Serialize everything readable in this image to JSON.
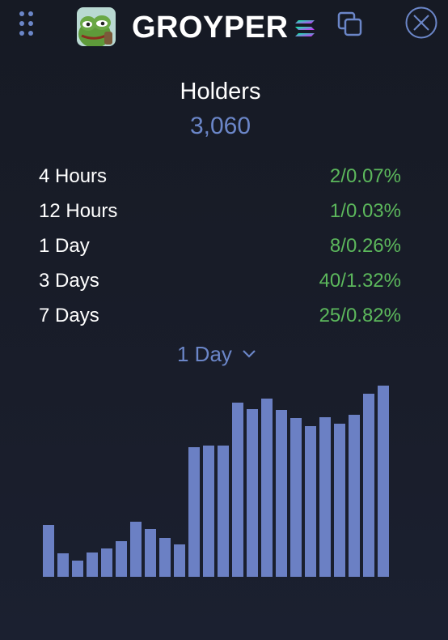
{
  "header": {
    "token_name": "GROYPER",
    "icons": {
      "drag": "drag-handle-icon",
      "avatar": "frog-avatar",
      "chain": "solana-icon",
      "copy": "copy-icon",
      "close": "close-icon"
    }
  },
  "holders": {
    "title": "Holders",
    "count": "3,060"
  },
  "stats": [
    {
      "label": "4 Hours",
      "value": "2/0.07%"
    },
    {
      "label": "12 Hours",
      "value": "1/0.03%"
    },
    {
      "label": "1 Day",
      "value": "8/0.26%"
    },
    {
      "label": "3 Days",
      "value": "40/1.32%"
    },
    {
      "label": "7 Days",
      "value": "25/0.82%"
    }
  ],
  "period_select": {
    "selected": "1 Day"
  },
  "colors": {
    "accent": "#6b86c8",
    "positive": "#5cb85c",
    "bar": "#6b80c4"
  },
  "chart_data": {
    "type": "bar",
    "values": [
      64,
      29,
      20,
      30,
      35,
      44,
      68,
      59,
      48,
      40,
      160,
      162,
      162,
      215,
      207,
      220,
      206,
      196,
      186,
      197,
      189,
      200,
      226,
      236
    ],
    "ylim": [
      0,
      240
    ],
    "grid": false,
    "legend": "none"
  }
}
